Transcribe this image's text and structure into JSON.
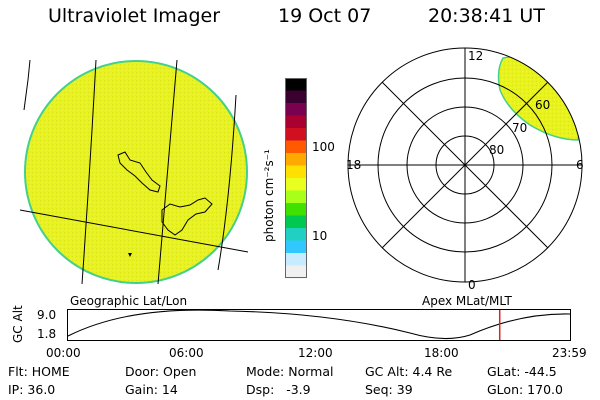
{
  "header": {
    "title": "Ultraviolet Imager",
    "date": "19 Oct 07",
    "time": "20:38:41 UT"
  },
  "colorbar": {
    "unit_label": "photon cm⁻²s⁻¹",
    "ticks": [
      "100",
      "10"
    ],
    "colors": [
      "#000000",
      "#3a0030",
      "#7a0050",
      "#aa0030",
      "#d01020",
      "#ff5a00",
      "#ffaa00",
      "#ffe000",
      "#e8ff20",
      "#a8ff18",
      "#40e000",
      "#00c850",
      "#20d0c0",
      "#30c8ff",
      "#c8ecff",
      "#f0f0f0"
    ]
  },
  "geo_panel": {
    "label": "Geographic Lat/Lon",
    "fill_color": "#e8f21e",
    "edge_color": "#45d08a"
  },
  "polar_panel": {
    "label": "Apex MLat/MLT",
    "hour_labels": {
      "top": "12",
      "left": "18",
      "right": "6",
      "bottom": "0"
    },
    "lat_labels": [
      "60",
      "70",
      "80"
    ],
    "fill_color": "#e8f21e"
  },
  "timeline": {
    "ylabel": "GC Alt",
    "y_ticks": [
      "9.0",
      "1.8"
    ],
    "x_ticks": [
      "00:00",
      "06:00",
      "12:00",
      "18:00",
      "23:59"
    ],
    "marker_color": "#dd2222",
    "current_time_fraction": 0.86
  },
  "footer": {
    "flt": "Flt: HOME",
    "ip": "IP: 36.0",
    "door": "Door: Open",
    "gain": "Gain: 14",
    "mode": "Mode: Normal",
    "dsp": "Dsp:   -3.9",
    "gcalt": "GC Alt: 4.4 Re",
    "seq": "Seq: 39",
    "glat": "GLat: -44.5",
    "glon": "GLon: 170.0"
  }
}
